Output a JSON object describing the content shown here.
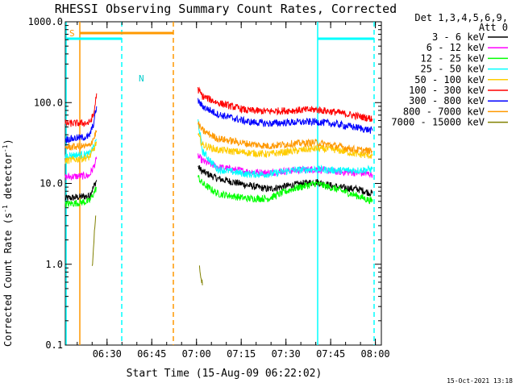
{
  "chart_data": {
    "type": "line",
    "title": "RHESSI Observing Summary Count Rates, Corrected",
    "xlabel": "Start Time (15-Aug-09 06:22:02)",
    "ylabel_main": "Corrected Count Rate (s",
    "ylabel_sup1": "-1",
    "ylabel_mid": " detector",
    "ylabel_sup2": "-1",
    "ylabel_end": ")",
    "y_scale": "log",
    "ylim": [
      0.1,
      1000
    ],
    "xlim_minutes": [
      -6,
      100
    ],
    "x_ticks": [
      {
        "minute": 8,
        "label": "06:30"
      },
      {
        "minute": 23,
        "label": "06:45"
      },
      {
        "minute": 38,
        "label": "07:00"
      },
      {
        "minute": 53,
        "label": "07:15"
      },
      {
        "minute": 68,
        "label": "07:30"
      },
      {
        "minute": 83,
        "label": "07:45"
      },
      {
        "minute": 98,
        "label": "08:00"
      }
    ],
    "y_ticks": [
      {
        "value": 0.1,
        "label": "0.1"
      },
      {
        "value": 1,
        "label": "1.0"
      },
      {
        "value": 10,
        "label": "10.0"
      },
      {
        "value": 100,
        "label": "100.0"
      },
      {
        "value": 1000,
        "label": "1000.0"
      }
    ],
    "legend": {
      "header1": "Det 1,3,4,5,6,9,",
      "header2": "Att 0",
      "placement": "right"
    },
    "series": [
      {
        "name": "3 - 6 keV",
        "color": "#000000",
        "pre": [
          [
            -6,
            6.5
          ],
          [
            2,
            7
          ],
          [
            3.5,
            9
          ],
          [
            4.5,
            11
          ]
        ],
        "post": [
          [
            38.5,
            16
          ],
          [
            40,
            14
          ],
          [
            45,
            11.5
          ],
          [
            55,
            9.5
          ],
          [
            62,
            8.5
          ],
          [
            70,
            9.5
          ],
          [
            78,
            10.5
          ],
          [
            85,
            9
          ],
          [
            92,
            8.5
          ],
          [
            97,
            7.5
          ]
        ]
      },
      {
        "name": "6 - 12 keV",
        "color": "#ff00ff",
        "pre": [
          [
            -6,
            12
          ],
          [
            2,
            12.5
          ],
          [
            3.5,
            16
          ],
          [
            4.5,
            20
          ]
        ],
        "post": [
          [
            38.5,
            22
          ],
          [
            40,
            19
          ],
          [
            45,
            16
          ],
          [
            55,
            14
          ],
          [
            62,
            13.5
          ],
          [
            70,
            14.5
          ],
          [
            78,
            15
          ],
          [
            85,
            14
          ],
          [
            92,
            13.5
          ],
          [
            97,
            13
          ]
        ]
      },
      {
        "name": "12 - 25 keV",
        "color": "#00ff00",
        "pre": [
          [
            -6,
            5.5
          ],
          [
            2,
            6
          ],
          [
            3.5,
            7.5
          ],
          [
            4.5,
            9
          ]
        ],
        "post": [
          [
            38.5,
            12
          ],
          [
            40,
            10
          ],
          [
            45,
            7.5
          ],
          [
            55,
            6.5
          ],
          [
            62,
            6.5
          ],
          [
            70,
            8.5
          ],
          [
            78,
            10
          ],
          [
            85,
            8.5
          ],
          [
            92,
            7
          ],
          [
            97,
            6
          ]
        ]
      },
      {
        "name": "25 - 50 keV",
        "color": "#00ffff",
        "pre": [
          [
            -6,
            22
          ],
          [
            2,
            23
          ],
          [
            3.5,
            28
          ],
          [
            4.5,
            35
          ]
        ],
        "post": [
          [
            38.5,
            60
          ],
          [
            40,
            25
          ],
          [
            45,
            15
          ],
          [
            55,
            13
          ],
          [
            62,
            13
          ],
          [
            70,
            14.5
          ],
          [
            78,
            15
          ],
          [
            85,
            14.5
          ],
          [
            92,
            14.5
          ],
          [
            97,
            15
          ]
        ]
      },
      {
        "name": "50 - 100 keV",
        "color": "#ffcc00",
        "pre": [
          [
            -6,
            19
          ],
          [
            2,
            21
          ],
          [
            3.5,
            26
          ],
          [
            4.5,
            33
          ]
        ],
        "post": [
          [
            38.5,
            40
          ],
          [
            40,
            30
          ],
          [
            45,
            26
          ],
          [
            55,
            24
          ],
          [
            62,
            23
          ],
          [
            70,
            25
          ],
          [
            78,
            27
          ],
          [
            85,
            26
          ],
          [
            92,
            23
          ],
          [
            97,
            22
          ]
        ]
      },
      {
        "name": "100 - 300 keV",
        "color": "#ff0000",
        "pre": [
          [
            -6,
            55
          ],
          [
            2,
            56
          ],
          [
            3.5,
            70
          ],
          [
            4.5,
            130
          ]
        ],
        "post": [
          [
            38.5,
            145
          ],
          [
            40,
            120
          ],
          [
            45,
            100
          ],
          [
            55,
            80
          ],
          [
            62,
            78
          ],
          [
            70,
            80
          ],
          [
            78,
            82
          ],
          [
            85,
            76
          ],
          [
            92,
            68
          ],
          [
            97,
            63
          ]
        ]
      },
      {
        "name": "300 - 800 keV",
        "color": "#0000ff",
        "pre": [
          [
            -6,
            35
          ],
          [
            2,
            38
          ],
          [
            3.5,
            55
          ],
          [
            4.5,
            90
          ]
        ],
        "post": [
          [
            38.5,
            105
          ],
          [
            40,
            90
          ],
          [
            45,
            72
          ],
          [
            55,
            58
          ],
          [
            62,
            55
          ],
          [
            70,
            57
          ],
          [
            78,
            58
          ],
          [
            85,
            54
          ],
          [
            92,
            49
          ],
          [
            97,
            45
          ]
        ]
      },
      {
        "name": "800 - 7000 keV",
        "color": "#ff9900",
        "pre": [
          [
            -6,
            28
          ],
          [
            2,
            29
          ],
          [
            3.5,
            36
          ],
          [
            4.5,
            45
          ]
        ],
        "post": [
          [
            38.5,
            55
          ],
          [
            40,
            45
          ],
          [
            45,
            36
          ],
          [
            55,
            31
          ],
          [
            62,
            29
          ],
          [
            70,
            31
          ],
          [
            78,
            32
          ],
          [
            85,
            29
          ],
          [
            92,
            26
          ],
          [
            97,
            25
          ]
        ]
      },
      {
        "name": "7000 - 15000 keV",
        "color": "#808000",
        "pre": [
          [
            3,
            0.9
          ],
          [
            3.6,
            2
          ],
          [
            4.2,
            4
          ]
        ],
        "post": [
          [
            39,
            0.9
          ],
          [
            39.6,
            0.7
          ],
          [
            40,
            0.55
          ]
        ]
      }
    ],
    "saa_label": "S",
    "night_label": "N"
  },
  "footer": {
    "timestamp": "15-Oct-2021 13:18"
  }
}
